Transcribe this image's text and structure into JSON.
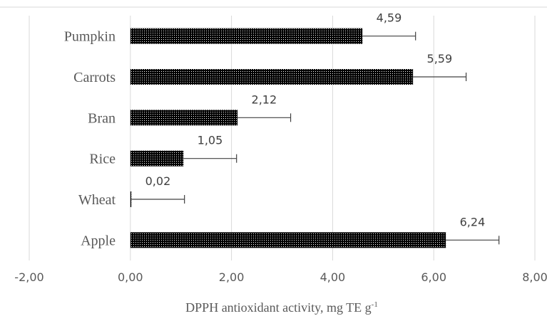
{
  "chart_data": {
    "type": "bar",
    "orientation": "horizontal",
    "categories": [
      "Pumpkin",
      "Carrots",
      "Bran",
      "Rice",
      "Wheat",
      "Apple"
    ],
    "values": [
      4.59,
      5.59,
      2.12,
      1.05,
      0.02,
      6.24
    ],
    "value_labels": [
      "4,59",
      "5,59",
      "2,12",
      "1,05",
      "0,02",
      "6,24"
    ],
    "error_plus": [
      1.05,
      1.05,
      1.05,
      1.05,
      1.05,
      1.05
    ],
    "xlim": [
      -2,
      8
    ],
    "x_ticks": [
      -2,
      0,
      2,
      4,
      6,
      8
    ],
    "x_tick_labels": [
      "-2,00",
      "0,00",
      "2,00",
      "4,00",
      "6,00",
      "8,00"
    ],
    "xlabel_main": "DPPH antioxidant activity, mg TE g",
    "xlabel_sup": "-1",
    "title": "",
    "grid": "vertical",
    "legend": "none",
    "colors": {
      "bar_fill": "#000000",
      "bar_dot": "#ffffff",
      "grid": "#d9d9d9",
      "error_bar": "#404040",
      "text": "#595959"
    }
  }
}
